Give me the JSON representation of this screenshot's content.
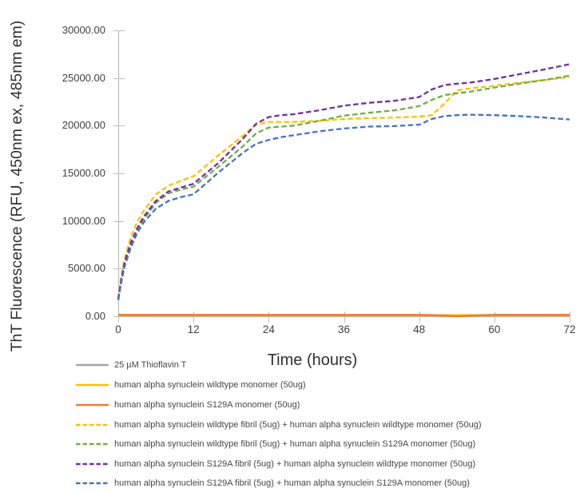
{
  "chart_data": {
    "type": "line",
    "title": "",
    "xlabel": "Time (hours)",
    "ylabel": "ThT Fluorescence (RFU, 450nm ex, 485nm em)",
    "xlim": [
      0,
      72
    ],
    "ylim": [
      0,
      30000
    ],
    "xticks": [
      0,
      12,
      24,
      36,
      48,
      60,
      72
    ],
    "ytick_values": [
      0,
      5000,
      10000,
      15000,
      20000,
      25000,
      30000
    ],
    "ytick_labels": [
      "0.00",
      "5000.00",
      "10000.00",
      "15000.00",
      "20000.00",
      "25000.00",
      "30000.00"
    ],
    "grid": false,
    "legend_position": "bottom-left",
    "axis_color": "#BFBFBF",
    "text_color": "#404040",
    "x": [
      0,
      0.5,
      1,
      2,
      3,
      4,
      6,
      8,
      10,
      12,
      16,
      20,
      22,
      24,
      26,
      28,
      32,
      36,
      40,
      44,
      48,
      50,
      52,
      54,
      56,
      60,
      64,
      68,
      72
    ],
    "series": [
      {
        "key": "tht-only",
        "name": "25 µM Thioflavin T",
        "color": "#A6A6A6",
        "style": "solid",
        "values": [
          80,
          80,
          80,
          80,
          80,
          80,
          80,
          80,
          80,
          80,
          80,
          80,
          80,
          80,
          80,
          80,
          80,
          80,
          80,
          80,
          80,
          80,
          80,
          80,
          80,
          80,
          80,
          80,
          80
        ]
      },
      {
        "key": "wt-monomer",
        "name": "human alpha synuclein wildtype monomer (50ug)",
        "color": "#FFC000",
        "style": "solid",
        "values": [
          120,
          120,
          120,
          120,
          120,
          120,
          120,
          120,
          120,
          120,
          120,
          120,
          120,
          120,
          120,
          120,
          120,
          120,
          120,
          120,
          120,
          120,
          120,
          120,
          120,
          120,
          120,
          120,
          120
        ]
      },
      {
        "key": "s129a-monomer",
        "name": "human alpha synuclein S129A monomer (50ug)",
        "color": "#ED7D31",
        "style": "solid",
        "values": [
          150,
          150,
          150,
          150,
          150,
          150,
          150,
          150,
          150,
          150,
          150,
          150,
          150,
          150,
          150,
          150,
          150,
          150,
          150,
          150,
          150,
          120,
          60,
          0,
          50,
          140,
          150,
          150,
          150
        ]
      },
      {
        "key": "wt-fibril-wt-monomer",
        "name": "human alpha synuclein wildtype fibril (5ug) + human alpha synuclein wildtype monomer (50ug)",
        "color": "#FFC000",
        "style": "dashed",
        "values": [
          1900,
          4200,
          6000,
          8300,
          9900,
          11000,
          12800,
          13700,
          14200,
          14700,
          16900,
          19000,
          20100,
          20400,
          20400,
          20400,
          20500,
          20700,
          20800,
          20850,
          20950,
          21100,
          22300,
          23700,
          23900,
          24200,
          24500,
          24800,
          25100
        ]
      },
      {
        "key": "wt-fibril-s129a-monomer",
        "name": "human alpha synuclein wildtype fibril (5ug) + human alpha synuclein S129A monomer (50ug)",
        "color": "#70AD47",
        "style": "dashed",
        "values": [
          1800,
          3800,
          5400,
          7500,
          9000,
          10100,
          11900,
          12900,
          13300,
          13600,
          15700,
          17900,
          19200,
          19800,
          19900,
          20000,
          20500,
          21050,
          21350,
          21600,
          22050,
          22700,
          23200,
          23400,
          23550,
          24000,
          24400,
          24800,
          25250
        ]
      },
      {
        "key": "s129a-fibril-wt-monomer",
        "name": "human alpha synuclein S129A fibril (5ug) + human alpha synuclein wildtype monomer (50ug)",
        "color": "#7030A0",
        "style": "dashed",
        "values": [
          1800,
          3900,
          5600,
          7700,
          9200,
          10400,
          12100,
          13100,
          13500,
          13900,
          16100,
          18700,
          20200,
          20900,
          21100,
          21200,
          21600,
          22100,
          22400,
          22600,
          23000,
          23800,
          24250,
          24400,
          24500,
          24900,
          25400,
          25900,
          26450
        ]
      },
      {
        "key": "s129a-fibril-s129a-monomer",
        "name": "human alpha synuclein S129A fibril (5ug) + human alpha synuclein S129A monomer (50ug)",
        "color": "#4472C4",
        "style": "dashed",
        "values": [
          1700,
          3600,
          5200,
          7200,
          8700,
          9800,
          11300,
          12100,
          12500,
          12800,
          15100,
          17200,
          18100,
          18500,
          18800,
          19000,
          19400,
          19700,
          19900,
          19950,
          20100,
          20700,
          21000,
          21100,
          21150,
          21100,
          21000,
          20850,
          20650
        ]
      }
    ]
  }
}
